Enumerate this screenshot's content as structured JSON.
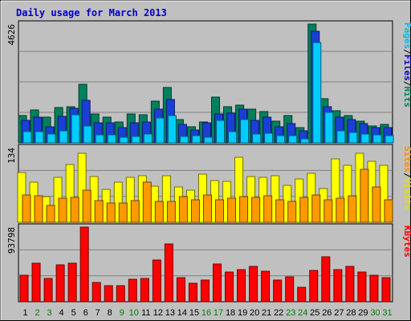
{
  "chart_data": {
    "type": "bar",
    "title": "Daily usage for March 2013",
    "title_color": "#0000cc",
    "categories": [
      "1",
      "2",
      "3",
      "4",
      "5",
      "6",
      "7",
      "8",
      "9",
      "10",
      "11",
      "12",
      "13",
      "14",
      "15",
      "16",
      "17",
      "18",
      "19",
      "20",
      "21",
      "22",
      "23",
      "24",
      "25",
      "26",
      "27",
      "28",
      "29",
      "30",
      "31"
    ],
    "weekend_days": [
      "2",
      "3",
      "9",
      "10",
      "16",
      "17",
      "23",
      "24",
      "30",
      "31"
    ],
    "weekday_label_color": "#000000",
    "weekend_label_color": "#008000",
    "panels": [
      {
        "id": "hits-files-pages",
        "ymax_label": "4626",
        "ylim": [
          0,
          4626
        ],
        "legend": [
          {
            "text": "Pages",
            "color": "#00bbee"
          },
          {
            "text": "/",
            "color": "#000000"
          },
          {
            "text": "Files",
            "color": "#0000cc"
          },
          {
            "text": "/",
            "color": "#000000"
          },
          {
            "text": "Hits",
            "color": "#008060"
          }
        ],
        "series": [
          {
            "name": "Hits",
            "color": "#00805c",
            "values": [
              1070,
              1270,
              1010,
              1370,
              1400,
              2290,
              1130,
              1000,
              820,
              1130,
              1100,
              1610,
              2160,
              910,
              640,
              810,
              1780,
              1420,
              1480,
              1300,
              1220,
              840,
              1050,
              580,
              4626,
              1730,
              1240,
              1060,
              830,
              660,
              720
            ]
          },
          {
            "name": "Files",
            "color": "#1a3fd8",
            "values": [
              870,
              1010,
              630,
              1030,
              1330,
              1660,
              770,
              770,
              600,
              770,
              820,
              1300,
              1700,
              720,
              500,
              770,
              1110,
              1160,
              1310,
              880,
              990,
              620,
              750,
              460,
              4360,
              1400,
              990,
              910,
              740,
              580,
              580
            ]
          },
          {
            "name": "Pages",
            "color": "#00ccff",
            "values": [
              430,
              440,
              340,
              480,
              1080,
              650,
              320,
              320,
              230,
              260,
              330,
              970,
              1060,
              250,
              290,
              230,
              870,
              450,
              920,
              350,
              390,
              270,
              270,
              160,
              3900,
              1190,
              470,
              400,
              330,
              300,
              270
            ]
          }
        ]
      },
      {
        "id": "visits-sites",
        "ymax_label": "134",
        "ylim": [
          0,
          134
        ],
        "legend": [
          {
            "text": "Sites",
            "color": "#ff8c00"
          },
          {
            "text": "/",
            "color": "#000000"
          },
          {
            "text": "Visits",
            "color": "#e0e000"
          }
        ],
        "series": [
          {
            "name": "Visits",
            "color": "#ffff00",
            "values": [
              89,
              72,
              46,
              81,
              104,
              124,
              82,
              59,
              72,
              81,
              83,
              65,
              83,
              63,
              58,
              86,
              75,
              74,
              117,
              82,
              80,
              83,
              66,
              78,
              88,
              60,
              114,
              103,
              124,
              110,
              103
            ]
          },
          {
            "name": "Sites",
            "color": "#ff9900",
            "values": [
              49,
              47,
              30,
              43,
              44,
              58,
              39,
              35,
              34,
              39,
              72,
              38,
              37,
              46,
              40,
              49,
              41,
              43,
              46,
              45,
              47,
              40,
              38,
              45,
              49,
              40,
              43,
              48,
              95,
              63,
              41
            ]
          }
        ]
      },
      {
        "id": "kbytes",
        "ymax_label": "93798",
        "ylim": [
          0,
          93798
        ],
        "legend": [
          {
            "text": "KBytes",
            "color": "#ff0000"
          }
        ],
        "series": [
          {
            "name": "KBytes",
            "color": "#ff0000",
            "values": [
              33600,
              48000,
              29300,
              46700,
              48900,
              93798,
              24600,
              20400,
              19900,
              28000,
              29100,
              52400,
              72800,
              29800,
              23200,
              27700,
              47100,
              37000,
              40600,
              44800,
              38000,
              27400,
              31100,
              17900,
              39600,
              56800,
              40000,
              44200,
              37800,
              32800,
              30600
            ]
          }
        ]
      }
    ]
  }
}
